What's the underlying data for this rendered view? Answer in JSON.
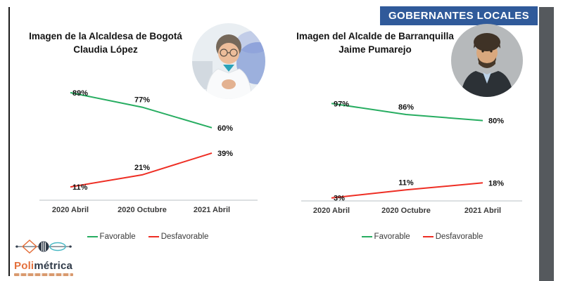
{
  "banner": {
    "label": "GOBERNANTES LOCALES",
    "bg_color": "#305a9a"
  },
  "panels": [
    {
      "title_line1": "Imagen de la Alcaldesa de Bogotá",
      "title_line2": "Claudia López",
      "photo": "claudia-lopez-photo"
    },
    {
      "title_line1": "Imagen del Alcalde de Barranquilla",
      "title_line2": "Jaime Pumarejo",
      "photo": "jaime-pumarejo-photo"
    }
  ],
  "chart_data": [
    {
      "type": "line",
      "title": "Imagen de la Alcaldesa de Bogotá Claudia López",
      "categories": [
        "2020 Abril",
        "2020 Octubre",
        "2021 Abril"
      ],
      "series": [
        {
          "name": "Favorable",
          "color": "#27ad61",
          "values": [
            89,
            77,
            60
          ],
          "labels": [
            "89%",
            "77%",
            "60%"
          ]
        },
        {
          "name": "Desfavorable",
          "color": "#ee2e24",
          "values": [
            11,
            21,
            39
          ],
          "labels": [
            "11%",
            "21%",
            "39%"
          ]
        }
      ],
      "ylim": [
        0,
        100
      ],
      "xlabel": "",
      "ylabel": "",
      "grid": false,
      "legend_position": "bottom"
    },
    {
      "type": "line",
      "title": "Imagen del Alcalde de Barranquilla Jaime Pumarejo",
      "categories": [
        "2020 Abril",
        "2020 Octubre",
        "2021 Abril"
      ],
      "series": [
        {
          "name": "Favorable",
          "color": "#27ad61",
          "values": [
            97,
            86,
            80
          ],
          "labels": [
            "97%",
            "86%",
            "80%"
          ]
        },
        {
          "name": "Desfavorable",
          "color": "#ee2e24",
          "values": [
            3,
            11,
            18
          ],
          "labels": [
            "3%",
            "11%",
            "18%"
          ]
        }
      ],
      "ylim": [
        0,
        100
      ],
      "xlabel": "",
      "ylabel": "",
      "grid": false,
      "legend_position": "bottom"
    }
  ],
  "logo": {
    "brand_orange": "Poli",
    "brand_dark": "métrica",
    "icon": "polimetrica-logo-icon"
  }
}
